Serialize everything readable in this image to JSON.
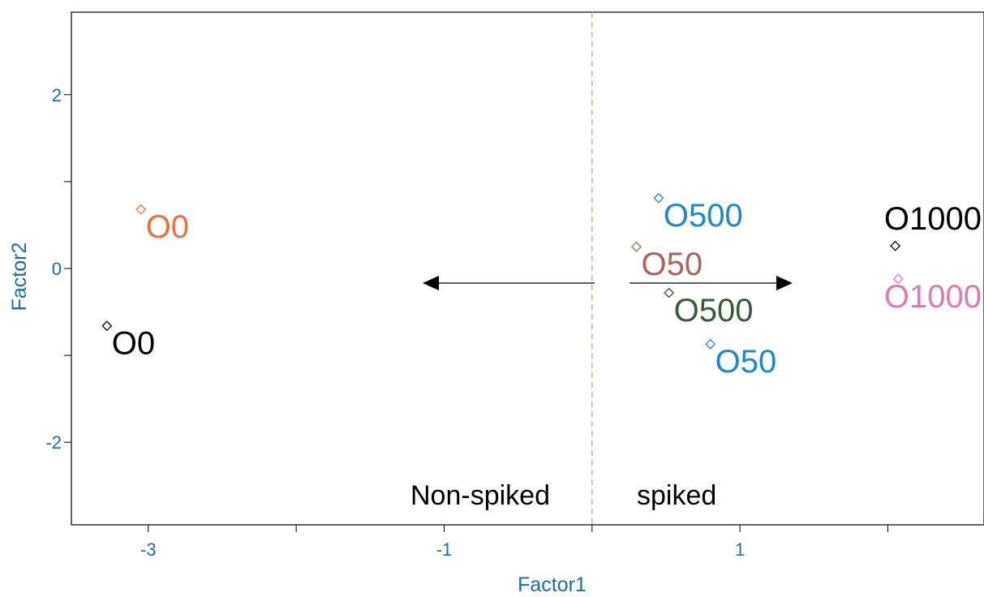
{
  "chart_data": {
    "type": "scatter",
    "xlabel": "Factor1",
    "ylabel": "Factor2",
    "xlim": [
      -3.52,
      2.65
    ],
    "ylim": [
      -2.95,
      2.95
    ],
    "x_ticks": [
      -3,
      -2,
      -1,
      0,
      1,
      2
    ],
    "x_tick_labels": [
      "-3",
      "",
      "-1",
      "",
      "1",
      ""
    ],
    "y_ticks": [
      -2,
      -1,
      0,
      1,
      2
    ],
    "y_tick_labels": [
      "-2",
      "",
      "0",
      "",
      "2"
    ],
    "grid": false,
    "divider": {
      "x": 0,
      "color": "#f4a582",
      "style": "dashed"
    },
    "points": [
      {
        "label": "O0",
        "x": -3.05,
        "y": 0.68,
        "color": "#f07035"
      },
      {
        "label": "O0",
        "x": -3.28,
        "y": -0.66,
        "color": "#000000"
      },
      {
        "label": "O500",
        "x": 0.45,
        "y": 0.81,
        "color": "#1f88c8"
      },
      {
        "label": "O50",
        "x": 0.3,
        "y": 0.25,
        "color": "#a8665e"
      },
      {
        "label": "O500",
        "x": 0.52,
        "y": -0.28,
        "color": "#3a5a3a"
      },
      {
        "label": "O50",
        "x": 0.8,
        "y": -0.87,
        "color": "#1f88c8"
      },
      {
        "label": "O1000",
        "x": 2.05,
        "y": 0.26,
        "color": "#000000"
      },
      {
        "label": "O1000",
        "x": 2.07,
        "y": -0.12,
        "color": "#e07ab5"
      }
    ],
    "annotations": [
      {
        "text": "Non-spiked",
        "direction": "left"
      },
      {
        "text": "spiked",
        "direction": "right"
      }
    ],
    "colors": {
      "axis_text": "#1a6ea8",
      "frame": "#000000"
    }
  }
}
